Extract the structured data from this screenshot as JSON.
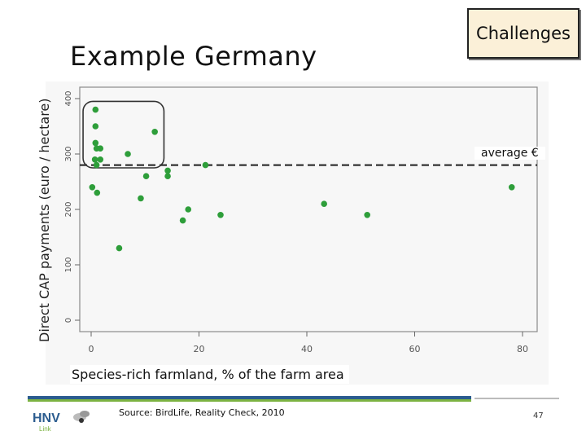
{
  "slide": {
    "title": "Example Germany",
    "challenges_label": "Challenges",
    "source": "Source: BirdLife, Reality Check, 2010",
    "page_number": "47",
    "logo_text": "HNV Link"
  },
  "colors": {
    "points": "#2e9e3a",
    "highlight_box": "#333333",
    "average_line": "#333333",
    "rule_blue": "#2b5c8f",
    "rule_green": "#7cb342"
  },
  "chart_data": {
    "type": "scatter",
    "title": "",
    "xlabel": "Species-rich farmland, % of the farm  area",
    "ylabel": "Direct CAP payments (euro / hectare)",
    "xlim": [
      0,
      80
    ],
    "ylim": [
      0,
      400
    ],
    "x_ticks": [
      0,
      20,
      40,
      60,
      80
    ],
    "y_ticks": [
      0,
      100,
      200,
      300,
      400
    ],
    "grid": false,
    "average_line": {
      "y": 280,
      "label": "average €"
    },
    "highlight_region": {
      "x": [
        -1.5,
        13.5
      ],
      "y": [
        275,
        395
      ]
    },
    "points": [
      {
        "x": 0.8,
        "y": 380
      },
      {
        "x": 0.8,
        "y": 350
      },
      {
        "x": 0.8,
        "y": 320
      },
      {
        "x": 1.0,
        "y": 310
      },
      {
        "x": 1.7,
        "y": 310
      },
      {
        "x": 0.7,
        "y": 290
      },
      {
        "x": 1.7,
        "y": 290
      },
      {
        "x": 1.0,
        "y": 280
      },
      {
        "x": 6.8,
        "y": 300
      },
      {
        "x": 11.8,
        "y": 340
      },
      {
        "x": 0.2,
        "y": 240
      },
      {
        "x": 1.1,
        "y": 230
      },
      {
        "x": 10.2,
        "y": 260
      },
      {
        "x": 14.2,
        "y": 260
      },
      {
        "x": 14.2,
        "y": 270
      },
      {
        "x": 21.2,
        "y": 280
      },
      {
        "x": 9.2,
        "y": 220
      },
      {
        "x": 18.0,
        "y": 200
      },
      {
        "x": 17.0,
        "y": 180
      },
      {
        "x": 24.0,
        "y": 190
      },
      {
        "x": 5.2,
        "y": 130
      },
      {
        "x": 43.2,
        "y": 210
      },
      {
        "x": 51.2,
        "y": 190
      },
      {
        "x": 78.0,
        "y": 240
      }
    ]
  }
}
